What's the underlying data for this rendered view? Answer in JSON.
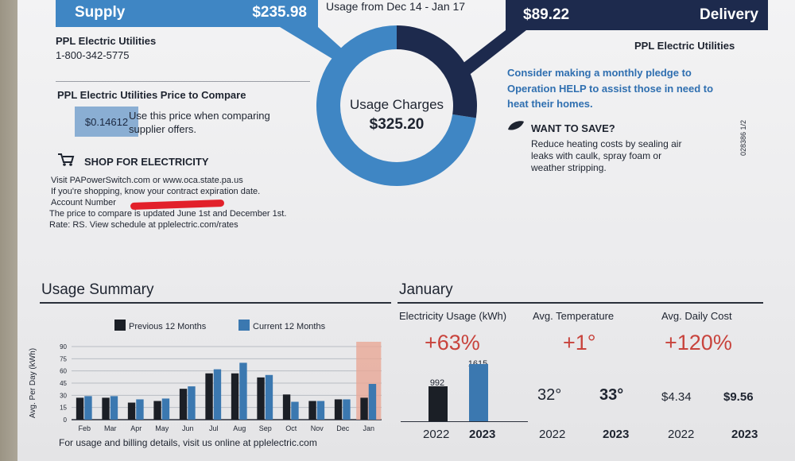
{
  "supply": {
    "label": "Supply",
    "amount": "$235.98",
    "provider": "PPL Electric Utilities",
    "phone": "1-800-342-5775"
  },
  "usage_period": "Usage from Dec 14 - Jan 17",
  "delivery": {
    "label": "Delivery",
    "amount": "$89.22",
    "provider": "PPL Electric Utilities"
  },
  "donut": {
    "label": "Usage Charges",
    "amount": "$325.20",
    "supply_color": "#3f86c4",
    "delivery_color": "#1d2a4d"
  },
  "price_to_compare": {
    "title": "PPL Electric Utilities Price to Compare",
    "value": "$0.14612",
    "line1": "Use this price when comparing",
    "line2": "supplier offers."
  },
  "shop": {
    "title": "SHOP FOR ELECTRICITY",
    "line1": "Visit PAPowerSwitch.com or www.oca.state.pa.us",
    "line2": "If you're shopping, know your contract expiration date.",
    "line3": "Account Number",
    "line4": "The price to compare is updated June 1st and December 1st.",
    "line5": "Rate: RS. View schedule at pplelectric.com/rates"
  },
  "pledge": {
    "line1": "Consider making a monthly pledge to",
    "line2": "Operation HELP to assist those in need to",
    "line3": "heat their homes."
  },
  "save": {
    "title": "WANT TO SAVE?",
    "line1": "Reduce heating costs by sealing air",
    "line2": "leaks with caulk, spray foam or",
    "line3": "weather stripping."
  },
  "form_code": "028386 1/2",
  "usage_summary": {
    "title": "Usage Summary",
    "footer": "For usage and billing details, visit us online at pplelectric.com"
  },
  "chart_data": {
    "type": "bar",
    "title": "",
    "ylabel": "Avg. Per Day (kWh)",
    "ylim": [
      0,
      90
    ],
    "yticks": [
      "90",
      "75",
      "60",
      "45",
      "30",
      "15",
      "0"
    ],
    "categories": [
      "Feb",
      "Mar",
      "Apr",
      "May",
      "Jun",
      "Jul",
      "Aug",
      "Sep",
      "Oct",
      "Nov",
      "Dec",
      "Jan"
    ],
    "series": [
      {
        "name": "Previous 12 Months",
        "color": "#1b1f26",
        "values": [
          27,
          27,
          21,
          23,
          38,
          57,
          57,
          52,
          31,
          23,
          25,
          27
        ]
      },
      {
        "name": "Current 12 Months",
        "color": "#3b78b0",
        "values": [
          29,
          29,
          25,
          26,
          41,
          62,
          70,
          55,
          22,
          23,
          25,
          44
        ]
      }
    ],
    "highlight_category": "Jan",
    "highlight_color": "#e9a896",
    "legend": "top"
  },
  "january": {
    "title": "January",
    "usage_label": "Electricity Usage (kWh)",
    "usage_change": "+63%",
    "usage_2022": "992",
    "usage_2023": "1615",
    "temp_label": "Avg. Temperature",
    "temp_change": "+1°",
    "temp_2022": "32°",
    "temp_2023": "33°",
    "cost_label": "Avg. Daily Cost",
    "cost_change": "+120%",
    "cost_2022": "$4.34",
    "cost_2023": "$9.56",
    "year_a": "2022",
    "year_b": "2023"
  }
}
